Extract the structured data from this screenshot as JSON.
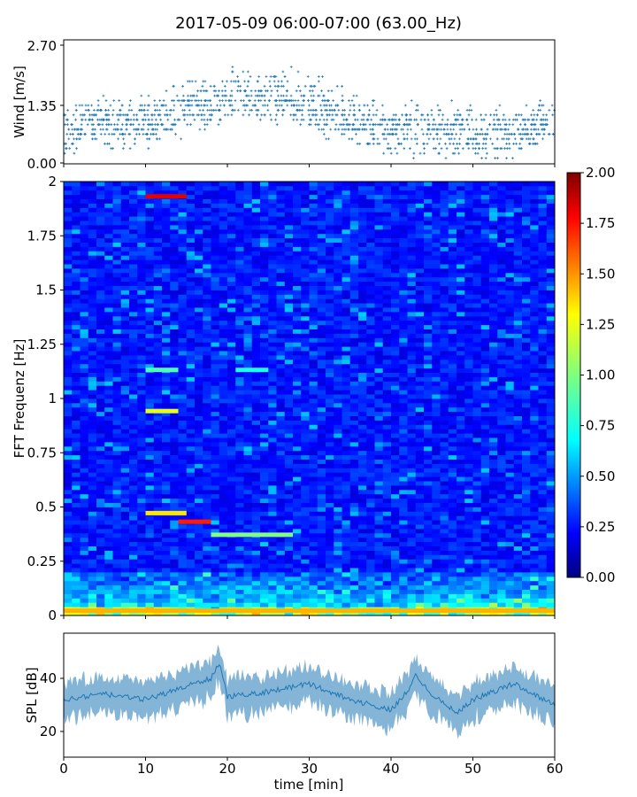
{
  "title": "2017-05-09 06:00-07:00 (63.00_Hz)",
  "chart_data": [
    {
      "type": "scatter",
      "panel": "wind",
      "ylabel": "Wind [m/s]",
      "yticks": [
        "0.00",
        "1.35",
        "2.70"
      ],
      "ylim": [
        0.0,
        2.8
      ],
      "xlim": [
        0,
        60
      ],
      "marker": "+",
      "color": "#1f77b4",
      "trend": {
        "x": [
          0,
          3,
          6,
          9,
          12,
          15,
          18,
          21,
          24,
          27,
          30,
          33,
          36,
          39,
          42,
          45,
          48,
          51,
          54,
          57,
          60
        ],
        "y": [
          0.7,
          0.95,
          0.9,
          0.9,
          1.0,
          1.25,
          1.35,
          1.55,
          1.45,
          1.5,
          1.35,
          1.2,
          0.9,
          0.75,
          0.8,
          0.75,
          0.75,
          0.7,
          0.7,
          0.75,
          1.0
        ]
      }
    },
    {
      "type": "heatmap",
      "panel": "spectrogram",
      "ylabel": "FFT Frequenz [Hz]",
      "yticks": [
        "0",
        "0.25",
        "0.5",
        "0.75",
        "1",
        "1.25",
        "1.5",
        "1.75",
        "2"
      ],
      "ylim": [
        0,
        2
      ],
      "xlim": [
        0,
        60
      ],
      "colormap": "jet",
      "colorbar": {
        "ticks": [
          "0.00",
          "0.25",
          "0.50",
          "0.75",
          "1.00",
          "1.25",
          "1.50",
          "1.75",
          "2.00"
        ],
        "range": [
          0,
          2
        ]
      },
      "features": [
        {
          "t": [
            10,
            15
          ],
          "f": 1.93,
          "value": 1.8
        },
        {
          "t": [
            10,
            15
          ],
          "f": 0.47,
          "value": 1.3
        },
        {
          "t": [
            14,
            18
          ],
          "f": 0.43,
          "value": 1.7
        },
        {
          "t": [
            18,
            28
          ],
          "f": 0.37,
          "value": 1.0
        },
        {
          "t": [
            10,
            14
          ],
          "f": 0.94,
          "value": 1.2
        },
        {
          "t": [
            10,
            14
          ],
          "f": 1.13,
          "value": 0.9
        },
        {
          "t": [
            21,
            25
          ],
          "f": 1.13,
          "value": 0.8
        },
        {
          "t": [
            0,
            60
          ],
          "f": 0.02,
          "value": 1.4
        }
      ]
    },
    {
      "type": "line",
      "panel": "spl",
      "ylabel": "SPL [dB]",
      "yticks": [
        "20",
        "40"
      ],
      "ylim": [
        10,
        56
      ],
      "xlim": [
        0,
        60
      ],
      "color": "#1f77b4",
      "trend": {
        "x": [
          0,
          5,
          10,
          15,
          18,
          19,
          20,
          25,
          30,
          35,
          40,
          42,
          43,
          45,
          48,
          50,
          55,
          60
        ],
        "y": [
          32,
          34,
          32,
          37,
          40,
          46,
          33,
          35,
          38,
          32,
          28,
          35,
          41,
          34,
          27,
          32,
          38,
          30
        ]
      },
      "xticks": [
        "0",
        "10",
        "20",
        "30",
        "40",
        "50",
        "60"
      ],
      "xlabel": "time [min]"
    }
  ]
}
